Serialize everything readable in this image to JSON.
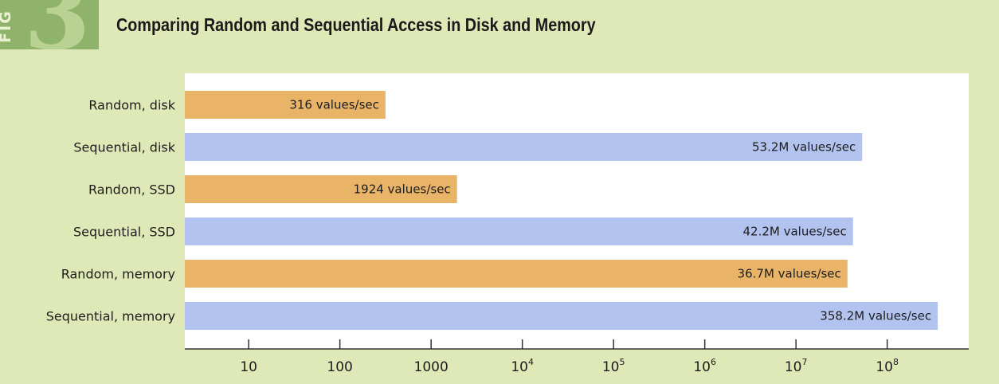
{
  "figure_badge": {
    "label": "FIG",
    "number": "3"
  },
  "chart_data": {
    "type": "bar",
    "orientation": "horizontal",
    "title": "Comparing Random and Sequential Access in Disk and Memory",
    "xscale": "log",
    "xlim": [
      1,
      1000000000
    ],
    "categories": [
      "Random, disk",
      "Sequential, disk",
      "Random, SSD",
      "Sequential, SSD",
      "Random, memory",
      "Sequential, memory"
    ],
    "values": [
      316,
      53200000,
      1924,
      42200000,
      36700000,
      358200000
    ],
    "data_labels": [
      "316 values/sec",
      "53.2M values/sec",
      "1924 values/sec",
      "42.2M values/sec",
      "36.7M values/sec",
      "358.2M values/sec"
    ],
    "ticks": [
      {
        "value": 10,
        "base": "10",
        "exp": ""
      },
      {
        "value": 100,
        "base": "100",
        "exp": ""
      },
      {
        "value": 1000,
        "base": "1000",
        "exp": ""
      },
      {
        "value": 10000,
        "base": "10",
        "exp": "4"
      },
      {
        "value": 100000,
        "base": "10",
        "exp": "5"
      },
      {
        "value": 1000000,
        "base": "10",
        "exp": "6"
      },
      {
        "value": 10000000,
        "base": "10",
        "exp": "7"
      },
      {
        "value": 100000000,
        "base": "10",
        "exp": "8"
      }
    ],
    "colors": {
      "random": "#e9b467",
      "sequential": "#b3c3ef",
      "plot_background": "#ffffff",
      "page_background": "#dfe9b8"
    },
    "grid": false,
    "legend": "none"
  }
}
